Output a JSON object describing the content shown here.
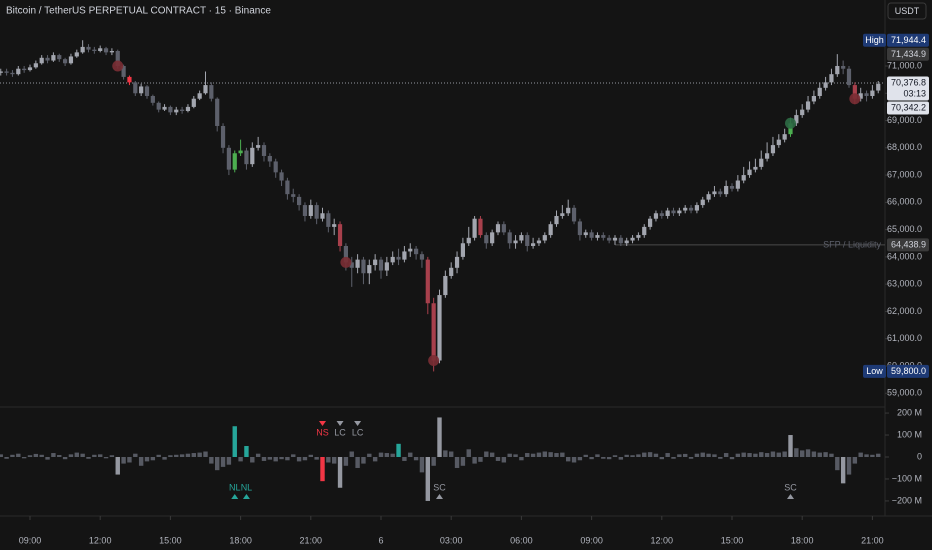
{
  "chart_data": [
    {
      "type": "candlestick",
      "title": "Bitcoin / TetherUS PERPETUAL CONTRACT · 15 · Binance",
      "currency": "USDT",
      "ylim": [
        58569,
        73420
      ],
      "yticks": [
        {
          "value": 59000,
          "label": "59,000.0"
        },
        {
          "value": 60000,
          "label": "60,000.0"
        },
        {
          "value": 61000,
          "label": "61,000.0"
        },
        {
          "value": 62000,
          "label": "62,000.0"
        },
        {
          "value": 63000,
          "label": "63,000.0"
        },
        {
          "value": 64000,
          "label": "64,000.0"
        },
        {
          "value": 65000,
          "label": "65,000.0"
        },
        {
          "value": 66000,
          "label": "66,000.0"
        },
        {
          "value": 67000,
          "label": "67,000.0"
        },
        {
          "value": 68000,
          "label": "68,000.0"
        },
        {
          "value": 69000,
          "label": "69,000.0"
        },
        {
          "value": 70000,
          "label": "70,000.0"
        },
        {
          "value": 71000,
          "label": "71,000.0"
        }
      ],
      "xticks": [
        {
          "value": 5,
          "label": "09:00"
        },
        {
          "value": 17,
          "label": "12:00"
        },
        {
          "value": 29,
          "label": "15:00"
        },
        {
          "value": 41,
          "label": "18:00"
        },
        {
          "value": 53,
          "label": "21:00"
        },
        {
          "value": 65,
          "label": "6"
        },
        {
          "value": 77,
          "label": "03:00"
        },
        {
          "value": 89,
          "label": "06:00"
        },
        {
          "value": 101,
          "label": "09:00"
        },
        {
          "value": 113,
          "label": "12:00"
        },
        {
          "value": 125,
          "label": "15:00"
        },
        {
          "value": 137,
          "label": "18:00"
        },
        {
          "value": 149,
          "label": "21:00"
        }
      ],
      "open": [
        70750,
        70800,
        70750,
        70700,
        70900,
        70850,
        70950,
        71100,
        71300,
        71200,
        71400,
        71250,
        71100,
        71350,
        71500,
        71700,
        71600,
        71550,
        71650,
        71500,
        71550,
        71000,
        70600,
        70400,
        70000,
        70250,
        69900,
        69650,
        69400,
        69500,
        69300,
        69400,
        69350,
        69500,
        69800,
        70000,
        70300,
        69800,
        68800,
        68000,
        67200,
        67800,
        67900,
        67400,
        68000,
        68100,
        67700,
        67500,
        67100,
        66800,
        66300,
        66200,
        65900,
        65500,
        65900,
        65400,
        65600,
        65100,
        65200,
        64400,
        63800,
        63600,
        63900,
        63400,
        63700,
        63900,
        63500,
        63800,
        64000,
        63900,
        64200,
        64300,
        64100,
        63900,
        62300,
        60200,
        62600,
        63300,
        63600,
        64000,
        64500,
        64700,
        65400,
        64800,
        64500,
        64900,
        65200,
        64900,
        64500,
        64600,
        64800,
        64400,
        64500,
        64600,
        64800,
        65200,
        65500,
        65600,
        65800,
        65300,
        64800,
        64900,
        64700,
        64800,
        64700,
        64600,
        64700,
        64500,
        64600,
        64700,
        64800,
        65100,
        65400,
        65600,
        65500,
        65700,
        65600,
        65700,
        65800,
        65700,
        65900,
        66100,
        66300,
        66400,
        66300,
        66600,
        66500,
        66800,
        67000,
        67200,
        67300,
        67600,
        67800,
        68100,
        68300,
        68500,
        68900,
        69200,
        69400,
        69700,
        69900,
        70200,
        70400,
        70700,
        71000,
        70900,
        70300,
        69800,
        70000,
        69900,
        70100
      ],
      "high": [
        70900,
        70900,
        70850,
        71000,
        71000,
        71050,
        71200,
        71400,
        71400,
        71500,
        71450,
        71300,
        71450,
        71600,
        71944.4,
        71800,
        71700,
        71750,
        71700,
        71650,
        71600,
        71050,
        70650,
        70450,
        70350,
        70300,
        69950,
        69700,
        69600,
        69550,
        69500,
        69500,
        69600,
        69900,
        70100,
        70800,
        70400,
        69850,
        68900,
        68100,
        67900,
        68300,
        68000,
        68200,
        68400,
        68200,
        67800,
        67600,
        67200,
        66900,
        66500,
        66300,
        66000,
        66100,
        66000,
        65800,
        65700,
        65400,
        65300,
        64500,
        64000,
        64100,
        64000,
        63900,
        64100,
        64000,
        64000,
        64200,
        64300,
        64400,
        64500,
        64400,
        64200,
        64000,
        62500,
        62800,
        63500,
        63800,
        64200,
        64700,
        65100,
        65500,
        65500,
        64900,
        65000,
        65300,
        65300,
        65000,
        64800,
        64900,
        64900,
        64700,
        64700,
        64900,
        65300,
        65700,
        65900,
        66100,
        65900,
        65400,
        65000,
        65000,
        64900,
        64900,
        64800,
        64800,
        64800,
        64700,
        64800,
        64900,
        65200,
        65500,
        65700,
        65700,
        65800,
        65800,
        65800,
        65900,
        65900,
        66000,
        66200,
        66400,
        66600,
        66500,
        66800,
        66700,
        67000,
        67300,
        67500,
        67600,
        67900,
        68200,
        68400,
        68500,
        68700,
        69100,
        69400,
        69600,
        69900,
        70100,
        70400,
        70600,
        70900,
        71434.9,
        71200,
        71000,
        70400,
        70200,
        70100,
        70300,
        70450
      ],
      "low": [
        70650,
        70650,
        70600,
        70650,
        70750,
        70800,
        70900,
        71050,
        71100,
        71150,
        71150,
        71000,
        71050,
        71300,
        71450,
        71500,
        71450,
        71500,
        71400,
        71400,
        70900,
        70500,
        70300,
        69900,
        69900,
        69800,
        69550,
        69300,
        69350,
        69200,
        69200,
        69250,
        69300,
        69450,
        69750,
        69950,
        69700,
        68600,
        67800,
        67000,
        67100,
        67700,
        67200,
        67300,
        67900,
        67500,
        67300,
        66900,
        66600,
        66100,
        66000,
        65700,
        65300,
        65400,
        65200,
        65300,
        64900,
        64800,
        64200,
        63500,
        62900,
        63400,
        63000,
        63000,
        63500,
        63200,
        63300,
        63700,
        63700,
        63800,
        64000,
        63900,
        63600,
        61900,
        59800,
        60100,
        62500,
        63200,
        63400,
        63900,
        64400,
        64600,
        64700,
        64300,
        64400,
        64800,
        64800,
        64300,
        64300,
        64500,
        64200,
        64300,
        64400,
        64500,
        64700,
        65100,
        65400,
        65500,
        65200,
        64600,
        64700,
        64600,
        64600,
        64600,
        64500,
        64438.9,
        64400,
        64400,
        64500,
        64600,
        64700,
        65000,
        65300,
        65400,
        65400,
        65500,
        65500,
        65600,
        65600,
        65600,
        65800,
        66000,
        66200,
        66200,
        66200,
        66400,
        66400,
        66700,
        66900,
        67100,
        67200,
        67500,
        67700,
        68000,
        68200,
        68400,
        68800,
        69100,
        69300,
        69600,
        69800,
        70100,
        70300,
        70600,
        70700,
        70200,
        69600,
        69700,
        69700,
        69800,
        70000
      ],
      "close": [
        70800,
        70750,
        70700,
        70900,
        70850,
        70950,
        71100,
        71300,
        71200,
        71400,
        71250,
        71100,
        71350,
        71500,
        71700,
        71600,
        71550,
        71650,
        71500,
        71550,
        71000,
        70600,
        70400,
        70000,
        70250,
        69900,
        69650,
        69400,
        69500,
        69300,
        69400,
        69350,
        69500,
        69800,
        70000,
        70300,
        69800,
        68800,
        68000,
        67200,
        67800,
        67900,
        67400,
        68000,
        68100,
        67700,
        67500,
        67100,
        66800,
        66300,
        66200,
        65900,
        65500,
        65900,
        65400,
        65600,
        65100,
        65200,
        64400,
        63800,
        63600,
        63900,
        63400,
        63700,
        63900,
        63500,
        63800,
        64000,
        63900,
        64200,
        64300,
        64100,
        63900,
        62300,
        60200,
        62600,
        63300,
        63600,
        64000,
        64500,
        64700,
        65400,
        64800,
        64500,
        64900,
        65200,
        64900,
        64500,
        64600,
        64800,
        64400,
        64500,
        64600,
        64800,
        65200,
        65500,
        65600,
        65800,
        65300,
        64800,
        64900,
        64700,
        64800,
        64700,
        64600,
        64700,
        64500,
        64600,
        64700,
        64800,
        65100,
        65400,
        65600,
        65500,
        65700,
        65600,
        65700,
        65800,
        65700,
        65900,
        66100,
        66300,
        66400,
        66300,
        66600,
        66500,
        66800,
        67000,
        67200,
        67300,
        67600,
        67800,
        68100,
        68300,
        68500,
        68900,
        69200,
        69400,
        69700,
        69900,
        70200,
        70400,
        70700,
        71000,
        70900,
        70300,
        69800,
        70000,
        69900,
        70100,
        70342.2
      ],
      "bright_red": [
        22
      ],
      "dark_red": [
        58,
        73,
        74,
        82,
        146
      ],
      "green": [
        40,
        41,
        135
      ],
      "dots": [
        {
          "index": 20,
          "color": "#7a2e34"
        },
        {
          "index": 59,
          "color": "#7a2e34"
        },
        {
          "index": 74,
          "color": "#7a2e34"
        },
        {
          "index": 135,
          "color": "#2e6b45"
        },
        {
          "index": 146,
          "color": "#7a2e34"
        }
      ],
      "price_labels": [
        {
          "value": 71944.4,
          "label": "71,944.4",
          "tag": "High",
          "style": "blue"
        },
        {
          "value": 71434.9,
          "label": "71,434.9",
          "style": "gray"
        },
        {
          "value": 70376.8,
          "label": "70,376.8",
          "sub": "03:13",
          "style": "white",
          "dotted": true
        },
        {
          "value": 70342.2,
          "label": "70,342.2",
          "style": "white"
        },
        {
          "value": 64438.9,
          "label": "64,438.9",
          "tag": "SFP / Liquidity",
          "style": "gray",
          "from_index": 105
        },
        {
          "value": 59800,
          "label": "59,800.0",
          "tag": "Low",
          "style": "blue"
        }
      ]
    },
    {
      "type": "bar",
      "ylim": [
        -264,
        223
      ],
      "yticks": [
        {
          "value": 200,
          "label": "200 M"
        },
        {
          "value": 100,
          "label": "100 M"
        },
        0,
        {
          "value": -100,
          "label": "−100 M"
        },
        {
          "value": -200,
          "label": "−200 M"
        }
      ],
      "values": [
        12,
        -8,
        10,
        15,
        -6,
        8,
        14,
        10,
        -12,
        18,
        9,
        -10,
        12,
        20,
        15,
        -8,
        10,
        12,
        -6,
        8,
        -80,
        -30,
        -25,
        15,
        -40,
        -20,
        -15,
        10,
        -12,
        8,
        10,
        12,
        15,
        18,
        20,
        25,
        -30,
        -60,
        -45,
        -35,
        140,
        -20,
        50,
        -25,
        15,
        -18,
        -12,
        -20,
        -10,
        -15,
        12,
        -20,
        -15,
        10,
        -12,
        -110,
        -25,
        -30,
        -140,
        -40,
        25,
        -50,
        -30,
        15,
        -20,
        20,
        18,
        15,
        60,
        -18,
        20,
        -15,
        -70,
        -200,
        -40,
        180,
        30,
        25,
        -50,
        -40,
        35,
        -30,
        -22,
        25,
        20,
        -18,
        -25,
        15,
        12,
        -15,
        18,
        15,
        20,
        25,
        22,
        18,
        20,
        -20,
        -25,
        -15,
        10,
        -10,
        12,
        -8,
        -10,
        8,
        -12,
        10,
        8,
        12,
        20,
        22,
        15,
        -10,
        18,
        -8,
        12,
        14,
        -8,
        15,
        20,
        15,
        12,
        -8,
        18,
        -10,
        15,
        20,
        18,
        15,
        22,
        18,
        25,
        20,
        25,
        100,
        40,
        30,
        35,
        25,
        20,
        22,
        15,
        -60,
        -120,
        -80,
        -30,
        20,
        12,
        10,
        15
      ],
      "teal": [
        40,
        42,
        68
      ],
      "red": [
        55
      ],
      "light": [
        20,
        58,
        73,
        75,
        135,
        144
      ],
      "signals": [
        {
          "label": "NL",
          "index": 40,
          "position": "below",
          "color": "#26a69a"
        },
        {
          "label": "NL",
          "index": 42,
          "position": "below",
          "color": "#26a69a"
        },
        {
          "label": "NS",
          "index": 55,
          "position": "above",
          "color": "#f23645"
        },
        {
          "label": "LC",
          "index": 58,
          "position": "above",
          "color": "#9598a1"
        },
        {
          "label": "LC",
          "index": 61,
          "position": "above",
          "color": "#9598a1"
        },
        {
          "label": "SC",
          "index": 75,
          "position": "below",
          "color": "#9598a1"
        },
        {
          "label": "SC",
          "index": 135,
          "position": "below",
          "color": "#9598a1"
        }
      ]
    }
  ]
}
